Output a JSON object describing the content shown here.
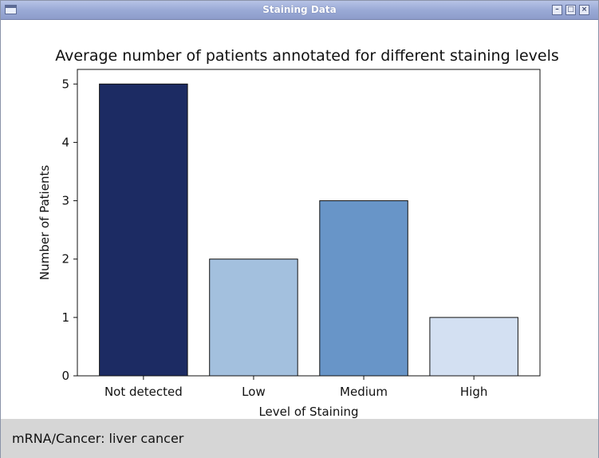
{
  "window": {
    "title": "Staining Data",
    "controls": [
      {
        "name": "minimize",
        "glyph": "–"
      },
      {
        "name": "maximize",
        "glyph": "□"
      },
      {
        "name": "close",
        "glyph": "×"
      }
    ]
  },
  "chart_data": {
    "type": "bar",
    "title": "Average number of patients annotated for different staining levels",
    "xlabel": "Level of Staining",
    "ylabel": "Number of Patients",
    "categories": [
      "Not detected",
      "Low",
      "Medium",
      "High"
    ],
    "values": [
      5,
      2,
      3,
      1
    ],
    "colors": [
      "#1c2b63",
      "#a3c0de",
      "#6895c8",
      "#d3e0f2"
    ],
    "ylim": [
      0,
      5.25
    ],
    "yticks": [
      0,
      1,
      2,
      3,
      4,
      5
    ],
    "grid": false
  },
  "status": {
    "text": "mRNA/Cancer: liver cancer"
  }
}
